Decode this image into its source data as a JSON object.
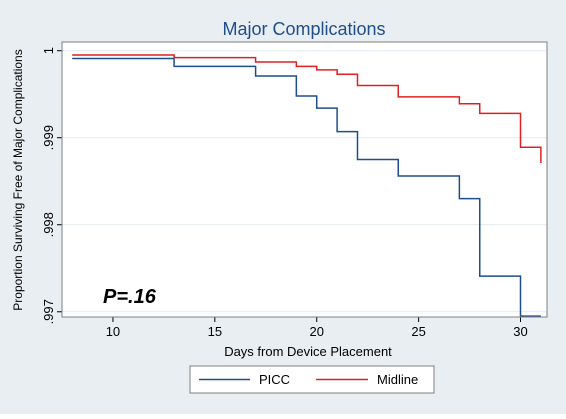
{
  "chart_data": {
    "type": "line",
    "step": true,
    "title": "Major Complications",
    "xlabel": "Days from Device Placement",
    "ylabel": "Proportion Surviving Free of Major Complications",
    "annotation": "P=.16",
    "xlim": [
      7.5,
      31.3
    ],
    "ylim": [
      0.99694,
      1.0001
    ],
    "xticks": [
      10,
      15,
      20,
      25,
      30
    ],
    "xtick_labels": [
      "10",
      "15",
      "20",
      "25",
      "30"
    ],
    "yticks": [
      0.997,
      0.998,
      0.999,
      1
    ],
    "ytick_labels": [
      ".997",
      ".998",
      ".999",
      "1"
    ],
    "grid": true,
    "legend_position": "bottom",
    "series": [
      {
        "name": "PICC",
        "color": "#1f4e8c",
        "x": [
          8,
          13,
          17,
          19,
          20,
          21,
          22,
          24,
          27,
          28,
          30,
          31
        ],
        "y": [
          0.99991,
          0.99982,
          0.99971,
          0.99948,
          0.99934,
          0.99907,
          0.99875,
          0.99856,
          0.9983,
          0.99741,
          0.99695,
          0.99695
        ]
      },
      {
        "name": "Midline",
        "color": "#e02020",
        "x": [
          8,
          13,
          17,
          19,
          20,
          21,
          22,
          24,
          27,
          28,
          30,
          31
        ],
        "y": [
          0.99995,
          0.99992,
          0.99987,
          0.99982,
          0.99978,
          0.99973,
          0.9996,
          0.99947,
          0.99939,
          0.99928,
          0.99889,
          0.99871
        ]
      }
    ]
  },
  "colors": {
    "outer_background": "#e9eef3",
    "plot_background": "#ffffff",
    "title_color": "#1f4e8c",
    "grid_color": "#e4eaf0"
  }
}
